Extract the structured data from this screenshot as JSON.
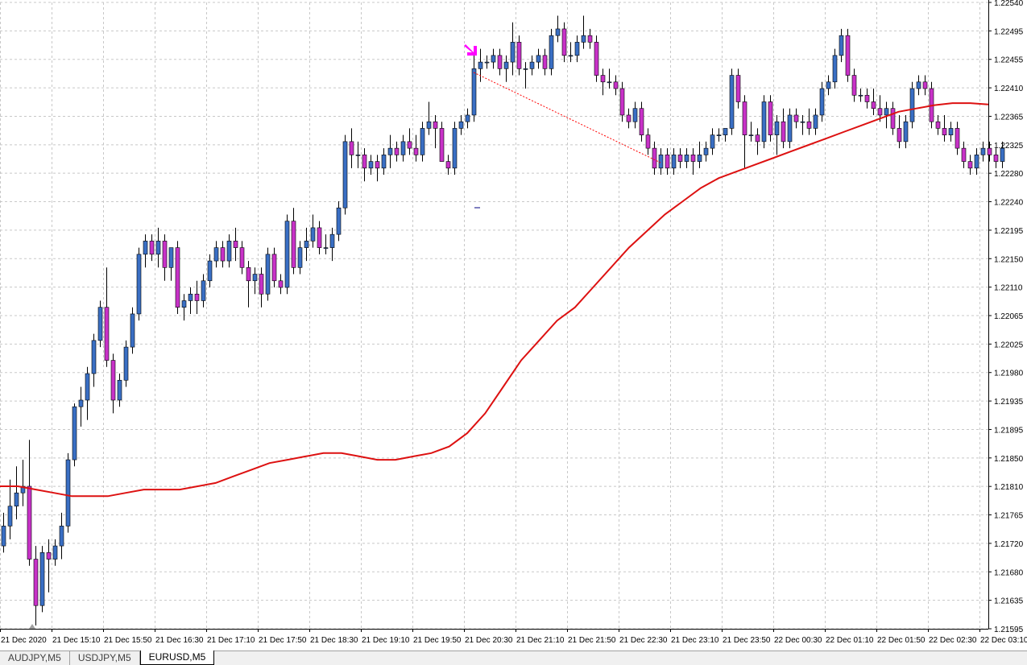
{
  "chart_data": {
    "type": "candlestick",
    "symbol": "EURUSD,M5",
    "grid": true,
    "colors": {
      "background": "#ffffff",
      "grid": "#c8c8c8",
      "bull_body": "#3a6fc4",
      "bear_body": "#c832c8",
      "wick": "#000000",
      "moving_average": "#dd1111",
      "arrow": "#ff00ff",
      "trend_line": "#ff0000",
      "axis": "#000000"
    },
    "ylim": [
      1.21595,
      1.2254
    ],
    "y_ticks": [
      "1.22540",
      "1.22495",
      "1.22455",
      "1.22410",
      "1.22365",
      "1.22325",
      "1.22280",
      "1.22240",
      "1.22195",
      "1.22150",
      "1.22110",
      "1.22065",
      "1.22025",
      "1.21980",
      "1.21935",
      "1.21895",
      "1.21850",
      "1.21810",
      "1.21765",
      "1.21720",
      "1.21680",
      "1.21635",
      "1.21595"
    ],
    "x_ticks": [
      "21 Dec 2020",
      "21 Dec 15:10",
      "21 Dec 15:50",
      "21 Dec 16:30",
      "21 Dec 17:10",
      "21 Dec 17:50",
      "21 Dec 18:30",
      "21 Dec 19:10",
      "21 Dec 19:50",
      "21 Dec 20:30",
      "21 Dec 21:10",
      "21 Dec 21:50",
      "21 Dec 22:30",
      "21 Dec 23:10",
      "21 Dec 23:50",
      "22 Dec 00:30",
      "22 Dec 01:10",
      "22 Dec 01:50",
      "22 Dec 02:30",
      "22 Dec 03:10"
    ],
    "bar_spacing_per_tick": 8,
    "candles": [
      {
        "o": 1.2172,
        "h": 1.2177,
        "l": 1.2171,
        "c": 1.2175
      },
      {
        "o": 1.2175,
        "h": 1.2182,
        "l": 1.2173,
        "c": 1.2178
      },
      {
        "o": 1.2178,
        "h": 1.2184,
        "l": 1.2176,
        "c": 1.218
      },
      {
        "o": 1.218,
        "h": 1.2185,
        "l": 1.2178,
        "c": 1.2181
      },
      {
        "o": 1.2181,
        "h": 1.2188,
        "l": 1.2169,
        "c": 1.217
      },
      {
        "o": 1.217,
        "h": 1.2172,
        "l": 1.216,
        "c": 1.2163
      },
      {
        "o": 1.2163,
        "h": 1.2172,
        "l": 1.2162,
        "c": 1.2171
      },
      {
        "o": 1.2171,
        "h": 1.2173,
        "l": 1.2165,
        "c": 1.217
      },
      {
        "o": 1.217,
        "h": 1.2173,
        "l": 1.2169,
        "c": 1.2172
      },
      {
        "o": 1.2172,
        "h": 1.2177,
        "l": 1.217,
        "c": 1.2175
      },
      {
        "o": 1.2175,
        "h": 1.2186,
        "l": 1.2174,
        "c": 1.2185
      },
      {
        "o": 1.2185,
        "h": 1.21935,
        "l": 1.2184,
        "c": 1.2193
      },
      {
        "o": 1.2193,
        "h": 1.2196,
        "l": 1.219,
        "c": 1.2194
      },
      {
        "o": 1.2194,
        "h": 1.2199,
        "l": 1.2191,
        "c": 1.2198
      },
      {
        "o": 1.2198,
        "h": 1.2204,
        "l": 1.2196,
        "c": 1.2203
      },
      {
        "o": 1.2203,
        "h": 1.2209,
        "l": 1.2202,
        "c": 1.2208
      },
      {
        "o": 1.2208,
        "h": 1.2214,
        "l": 1.2199,
        "c": 1.22
      },
      {
        "o": 1.22,
        "h": 1.2201,
        "l": 1.2192,
        "c": 1.2194
      },
      {
        "o": 1.2194,
        "h": 1.2198,
        "l": 1.2193,
        "c": 1.2197
      },
      {
        "o": 1.2197,
        "h": 1.2203,
        "l": 1.2196,
        "c": 1.2202
      },
      {
        "o": 1.2202,
        "h": 1.2208,
        "l": 1.2201,
        "c": 1.2207
      },
      {
        "o": 1.2207,
        "h": 1.2217,
        "l": 1.2206,
        "c": 1.2216
      },
      {
        "o": 1.2216,
        "h": 1.2219,
        "l": 1.2214,
        "c": 1.2218
      },
      {
        "o": 1.2218,
        "h": 1.2219,
        "l": 1.2215,
        "c": 1.2216
      },
      {
        "o": 1.2216,
        "h": 1.222,
        "l": 1.2214,
        "c": 1.2218
      },
      {
        "o": 1.2218,
        "h": 1.2219,
        "l": 1.2212,
        "c": 1.2214
      },
      {
        "o": 1.2214,
        "h": 1.2217,
        "l": 1.2212,
        "c": 1.2217
      },
      {
        "o": 1.2217,
        "h": 1.2218,
        "l": 1.2207,
        "c": 1.2208
      },
      {
        "o": 1.2208,
        "h": 1.221,
        "l": 1.2206,
        "c": 1.2209
      },
      {
        "o": 1.2209,
        "h": 1.2211,
        "l": 1.2207,
        "c": 1.221
      },
      {
        "o": 1.221,
        "h": 1.2212,
        "l": 1.2207,
        "c": 1.2209
      },
      {
        "o": 1.2209,
        "h": 1.2213,
        "l": 1.2208,
        "c": 1.2212
      },
      {
        "o": 1.2212,
        "h": 1.2216,
        "l": 1.2211,
        "c": 1.2215
      },
      {
        "o": 1.2215,
        "h": 1.2218,
        "l": 1.2214,
        "c": 1.2217
      },
      {
        "o": 1.2217,
        "h": 1.2218,
        "l": 1.2214,
        "c": 1.2215
      },
      {
        "o": 1.2215,
        "h": 1.2219,
        "l": 1.2214,
        "c": 1.2218
      },
      {
        "o": 1.2218,
        "h": 1.222,
        "l": 1.2215,
        "c": 1.2217
      },
      {
        "o": 1.2217,
        "h": 1.2218,
        "l": 1.2213,
        "c": 1.2214
      },
      {
        "o": 1.2214,
        "h": 1.2215,
        "l": 1.2208,
        "c": 1.2212
      },
      {
        "o": 1.2212,
        "h": 1.2214,
        "l": 1.221,
        "c": 1.2213
      },
      {
        "o": 1.2213,
        "h": 1.2214,
        "l": 1.2208,
        "c": 1.221
      },
      {
        "o": 1.221,
        "h": 1.2217,
        "l": 1.2209,
        "c": 1.2216
      },
      {
        "o": 1.2216,
        "h": 1.2217,
        "l": 1.2211,
        "c": 1.2212
      },
      {
        "o": 1.2212,
        "h": 1.2213,
        "l": 1.221,
        "c": 1.2211
      },
      {
        "o": 1.2211,
        "h": 1.2222,
        "l": 1.221,
        "c": 1.2221
      },
      {
        "o": 1.2221,
        "h": 1.2223,
        "l": 1.2213,
        "c": 1.2214
      },
      {
        "o": 1.2214,
        "h": 1.2218,
        "l": 1.2213,
        "c": 1.2217
      },
      {
        "o": 1.2217,
        "h": 1.222,
        "l": 1.2215,
        "c": 1.2218
      },
      {
        "o": 1.2218,
        "h": 1.2222,
        "l": 1.2217,
        "c": 1.222
      },
      {
        "o": 1.222,
        "h": 1.2221,
        "l": 1.2216,
        "c": 1.2217
      },
      {
        "o": 1.2217,
        "h": 1.2219,
        "l": 1.2216,
        "c": 1.2217
      },
      {
        "o": 1.2217,
        "h": 1.222,
        "l": 1.2215,
        "c": 1.2219
      },
      {
        "o": 1.2219,
        "h": 1.2224,
        "l": 1.2218,
        "c": 1.2223
      },
      {
        "o": 1.2223,
        "h": 1.2234,
        "l": 1.2222,
        "c": 1.2233
      },
      {
        "o": 1.2233,
        "h": 1.2235,
        "l": 1.2229,
        "c": 1.2231
      },
      {
        "o": 1.2231,
        "h": 1.2233,
        "l": 1.2229,
        "c": 1.2231
      },
      {
        "o": 1.2231,
        "h": 1.2232,
        "l": 1.2227,
        "c": 1.2229
      },
      {
        "o": 1.2229,
        "h": 1.2231,
        "l": 1.2228,
        "c": 1.223
      },
      {
        "o": 1.223,
        "h": 1.2231,
        "l": 1.2227,
        "c": 1.2229
      },
      {
        "o": 1.2229,
        "h": 1.2232,
        "l": 1.2228,
        "c": 1.2231
      },
      {
        "o": 1.2231,
        "h": 1.2234,
        "l": 1.2229,
        "c": 1.2232
      },
      {
        "o": 1.2232,
        "h": 1.2233,
        "l": 1.223,
        "c": 1.2231
      },
      {
        "o": 1.2231,
        "h": 1.2234,
        "l": 1.223,
        "c": 1.2233
      },
      {
        "o": 1.2233,
        "h": 1.2235,
        "l": 1.2231,
        "c": 1.2232
      },
      {
        "o": 1.2232,
        "h": 1.2234,
        "l": 1.223,
        "c": 1.2231
      },
      {
        "o": 1.2231,
        "h": 1.2236,
        "l": 1.223,
        "c": 1.2235
      },
      {
        "o": 1.2235,
        "h": 1.2239,
        "l": 1.2234,
        "c": 1.2236
      },
      {
        "o": 1.2236,
        "h": 1.2237,
        "l": 1.2232,
        "c": 1.2235
      },
      {
        "o": 1.2235,
        "h": 1.2236,
        "l": 1.223,
        "c": 1.223
      },
      {
        "o": 1.223,
        "h": 1.2231,
        "l": 1.2228,
        "c": 1.2229
      },
      {
        "o": 1.2229,
        "h": 1.2236,
        "l": 1.2228,
        "c": 1.2235
      },
      {
        "o": 1.2235,
        "h": 1.2237,
        "l": 1.2234,
        "c": 1.2236
      },
      {
        "o": 1.2236,
        "h": 1.2238,
        "l": 1.2235,
        "c": 1.2237
      },
      {
        "o": 1.2237,
        "h": 1.2246,
        "l": 1.2236,
        "c": 1.2244
      },
      {
        "o": 1.2244,
        "h": 1.2247,
        "l": 1.2242,
        "c": 1.2245
      },
      {
        "o": 1.2245,
        "h": 1.2246,
        "l": 1.2244,
        "c": 1.2245
      },
      {
        "o": 1.2245,
        "h": 1.2247,
        "l": 1.2244,
        "c": 1.2246
      },
      {
        "o": 1.2246,
        "h": 1.2247,
        "l": 1.2243,
        "c": 1.2244
      },
      {
        "o": 1.2244,
        "h": 1.2246,
        "l": 1.2242,
        "c": 1.2245
      },
      {
        "o": 1.2245,
        "h": 1.2251,
        "l": 1.2243,
        "c": 1.2248
      },
      {
        "o": 1.2248,
        "h": 1.2249,
        "l": 1.2243,
        "c": 1.2244
      },
      {
        "o": 1.2244,
        "h": 1.2245,
        "l": 1.2241,
        "c": 1.2244
      },
      {
        "o": 1.2244,
        "h": 1.2246,
        "l": 1.2243,
        "c": 1.2245
      },
      {
        "o": 1.2245,
        "h": 1.2247,
        "l": 1.2244,
        "c": 1.2246
      },
      {
        "o": 1.2246,
        "h": 1.2247,
        "l": 1.2243,
        "c": 1.2244
      },
      {
        "o": 1.2244,
        "h": 1.225,
        "l": 1.2243,
        "c": 1.2249
      },
      {
        "o": 1.2249,
        "h": 1.2252,
        "l": 1.2248,
        "c": 1.225
      },
      {
        "o": 1.225,
        "h": 1.2251,
        "l": 1.2245,
        "c": 1.2246
      },
      {
        "o": 1.2246,
        "h": 1.2248,
        "l": 1.2245,
        "c": 1.2246
      },
      {
        "o": 1.2246,
        "h": 1.2249,
        "l": 1.2245,
        "c": 1.2248
      },
      {
        "o": 1.2248,
        "h": 1.2252,
        "l": 1.2247,
        "c": 1.2249
      },
      {
        "o": 1.2249,
        "h": 1.225,
        "l": 1.2247,
        "c": 1.2248
      },
      {
        "o": 1.2248,
        "h": 1.2249,
        "l": 1.2242,
        "c": 1.2243
      },
      {
        "o": 1.2243,
        "h": 1.2244,
        "l": 1.224,
        "c": 1.2242
      },
      {
        "o": 1.2242,
        "h": 1.2244,
        "l": 1.2241,
        "c": 1.2242
      },
      {
        "o": 1.2242,
        "h": 1.2243,
        "l": 1.224,
        "c": 1.2241
      },
      {
        "o": 1.2241,
        "h": 1.2242,
        "l": 1.2236,
        "c": 1.2237
      },
      {
        "o": 1.2237,
        "h": 1.2238,
        "l": 1.2235,
        "c": 1.2236
      },
      {
        "o": 1.2236,
        "h": 1.2239,
        "l": 1.2235,
        "c": 1.2238
      },
      {
        "o": 1.2238,
        "h": 1.2239,
        "l": 1.2233,
        "c": 1.2234
      },
      {
        "o": 1.2234,
        "h": 1.2235,
        "l": 1.2231,
        "c": 1.2232
      },
      {
        "o": 1.2232,
        "h": 1.2233,
        "l": 1.2228,
        "c": 1.2229
      },
      {
        "o": 1.2229,
        "h": 1.2232,
        "l": 1.2228,
        "c": 1.2231
      },
      {
        "o": 1.2231,
        "h": 1.2232,
        "l": 1.2228,
        "c": 1.2229
      },
      {
        "o": 1.2229,
        "h": 1.2232,
        "l": 1.2228,
        "c": 1.2231
      },
      {
        "o": 1.2231,
        "h": 1.2232,
        "l": 1.2229,
        "c": 1.223
      },
      {
        "o": 1.223,
        "h": 1.2232,
        "l": 1.2229,
        "c": 1.2231
      },
      {
        "o": 1.2231,
        "h": 1.2232,
        "l": 1.2228,
        "c": 1.223
      },
      {
        "o": 1.223,
        "h": 1.2233,
        "l": 1.2229,
        "c": 1.2231
      },
      {
        "o": 1.2231,
        "h": 1.2233,
        "l": 1.223,
        "c": 1.2232
      },
      {
        "o": 1.2232,
        "h": 1.2235,
        "l": 1.2231,
        "c": 1.2234
      },
      {
        "o": 1.2234,
        "h": 1.2235,
        "l": 1.2233,
        "c": 1.2234
      },
      {
        "o": 1.2234,
        "h": 1.2235,
        "l": 1.2233,
        "c": 1.2235
      },
      {
        "o": 1.2235,
        "h": 1.2244,
        "l": 1.2234,
        "c": 1.2243
      },
      {
        "o": 1.2243,
        "h": 1.2244,
        "l": 1.2238,
        "c": 1.2239
      },
      {
        "o": 1.2239,
        "h": 1.224,
        "l": 1.2229,
        "c": 1.2234
      },
      {
        "o": 1.2234,
        "h": 1.2236,
        "l": 1.2233,
        "c": 1.2234
      },
      {
        "o": 1.2234,
        "h": 1.2235,
        "l": 1.2231,
        "c": 1.2233
      },
      {
        "o": 1.2233,
        "h": 1.224,
        "l": 1.2232,
        "c": 1.2239
      },
      {
        "o": 1.2239,
        "h": 1.224,
        "l": 1.2233,
        "c": 1.2234
      },
      {
        "o": 1.2234,
        "h": 1.2237,
        "l": 1.2231,
        "c": 1.2236
      },
      {
        "o": 1.2236,
        "h": 1.2238,
        "l": 1.2232,
        "c": 1.2233
      },
      {
        "o": 1.2233,
        "h": 1.2238,
        "l": 1.2232,
        "c": 1.2237
      },
      {
        "o": 1.2237,
        "h": 1.2238,
        "l": 1.2235,
        "c": 1.2236
      },
      {
        "o": 1.2236,
        "h": 1.2237,
        "l": 1.2234,
        "c": 1.2236
      },
      {
        "o": 1.2236,
        "h": 1.2238,
        "l": 1.2234,
        "c": 1.2235
      },
      {
        "o": 1.2235,
        "h": 1.2238,
        "l": 1.2234,
        "c": 1.2237
      },
      {
        "o": 1.2237,
        "h": 1.2242,
        "l": 1.2236,
        "c": 1.2241
      },
      {
        "o": 1.2241,
        "h": 1.2243,
        "l": 1.224,
        "c": 1.2242
      },
      {
        "o": 1.2242,
        "h": 1.2247,
        "l": 1.2241,
        "c": 1.2246
      },
      {
        "o": 1.2246,
        "h": 1.225,
        "l": 1.2245,
        "c": 1.2249
      },
      {
        "o": 1.2249,
        "h": 1.225,
        "l": 1.2242,
        "c": 1.2243
      },
      {
        "o": 1.2243,
        "h": 1.2244,
        "l": 1.2239,
        "c": 1.224
      },
      {
        "o": 1.224,
        "h": 1.2241,
        "l": 1.2239,
        "c": 1.224
      },
      {
        "o": 1.224,
        "h": 1.2241,
        "l": 1.2238,
        "c": 1.2239
      },
      {
        "o": 1.2239,
        "h": 1.2241,
        "l": 1.2237,
        "c": 1.2238
      },
      {
        "o": 1.2238,
        "h": 1.224,
        "l": 1.2236,
        "c": 1.2237
      },
      {
        "o": 1.2237,
        "h": 1.2239,
        "l": 1.2235,
        "c": 1.2238
      },
      {
        "o": 1.2238,
        "h": 1.2239,
        "l": 1.2234,
        "c": 1.2235
      },
      {
        "o": 1.2235,
        "h": 1.2237,
        "l": 1.2232,
        "c": 1.2233
      },
      {
        "o": 1.2233,
        "h": 1.2237,
        "l": 1.2232,
        "c": 1.2236
      },
      {
        "o": 1.2236,
        "h": 1.2242,
        "l": 1.2235,
        "c": 1.2241
      },
      {
        "o": 1.2241,
        "h": 1.2243,
        "l": 1.224,
        "c": 1.2242
      },
      {
        "o": 1.2242,
        "h": 1.2243,
        "l": 1.224,
        "c": 1.2241
      },
      {
        "o": 1.2241,
        "h": 1.2242,
        "l": 1.2235,
        "c": 1.2236
      },
      {
        "o": 1.2236,
        "h": 1.2237,
        "l": 1.2234,
        "c": 1.2235
      },
      {
        "o": 1.2235,
        "h": 1.2237,
        "l": 1.2233,
        "c": 1.2234
      },
      {
        "o": 1.2234,
        "h": 1.2236,
        "l": 1.2233,
        "c": 1.2235
      },
      {
        "o": 1.2235,
        "h": 1.2236,
        "l": 1.2231,
        "c": 1.2232
      },
      {
        "o": 1.2232,
        "h": 1.2233,
        "l": 1.2229,
        "c": 1.223
      },
      {
        "o": 1.223,
        "h": 1.2231,
        "l": 1.2228,
        "c": 1.2229
      },
      {
        "o": 1.2229,
        "h": 1.2232,
        "l": 1.2228,
        "c": 1.2231
      },
      {
        "o": 1.2231,
        "h": 1.2233,
        "l": 1.223,
        "c": 1.2232
      },
      {
        "o": 1.2232,
        "h": 1.2233,
        "l": 1.223,
        "c": 1.2231
      },
      {
        "o": 1.2231,
        "h": 1.2232,
        "l": 1.2229,
        "c": 1.223
      },
      {
        "o": 1.223,
        "h": 1.2233,
        "l": 1.2229,
        "c": 1.2232
      }
    ],
    "moving_average": [
      1.2181,
      1.2181,
      1.21805,
      1.218,
      1.21795,
      1.21795,
      1.21795,
      1.218,
      1.21805,
      1.21805,
      1.21805,
      1.2181,
      1.21815,
      1.21825,
      1.21835,
      1.21845,
      1.2185,
      1.21855,
      1.2186,
      1.2186,
      1.21855,
      1.2185,
      1.2185,
      1.21855,
      1.2186,
      1.2187,
      1.2189,
      1.2192,
      1.2196,
      1.22,
      1.2203,
      1.2206,
      1.2208,
      1.2211,
      1.2214,
      1.2217,
      1.22195,
      1.2222,
      1.2224,
      1.2226,
      1.22275,
      1.22285,
      1.22295,
      1.22305,
      1.22315,
      1.22325,
      1.22335,
      1.22345,
      1.22355,
      1.22365,
      1.22375,
      1.2238,
      1.22385,
      1.22388,
      1.22388,
      1.22386
    ]
  },
  "tabs": [
    {
      "label": "AUDJPY,M5"
    },
    {
      "label": "USDJPY,M5"
    },
    {
      "label": "EURUSD,M5"
    }
  ],
  "active_tab": "EURUSD,M5"
}
